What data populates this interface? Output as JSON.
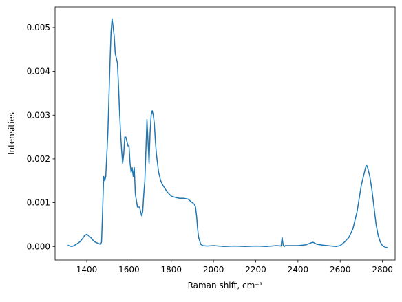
{
  "chart_data": {
    "type": "line",
    "xlabel": "Raman shift, cm⁻¹",
    "ylabel": "Intensities",
    "x": [
      1310,
      1320,
      1330,
      1340,
      1350,
      1360,
      1370,
      1380,
      1390,
      1400,
      1410,
      1420,
      1430,
      1440,
      1450,
      1460,
      1465,
      1470,
      1475,
      1480,
      1485,
      1490,
      1495,
      1500,
      1505,
      1510,
      1515,
      1520,
      1525,
      1530,
      1535,
      1540,
      1545,
      1550,
      1555,
      1560,
      1565,
      1570,
      1575,
      1580,
      1585,
      1590,
      1595,
      1600,
      1605,
      1610,
      1615,
      1620,
      1625,
      1630,
      1640,
      1650,
      1660,
      1665,
      1670,
      1675,
      1680,
      1685,
      1690,
      1695,
      1700,
      1705,
      1710,
      1715,
      1720,
      1725,
      1730,
      1740,
      1750,
      1760,
      1780,
      1800,
      1820,
      1840,
      1860,
      1880,
      1900,
      1910,
      1915,
      1920,
      1925,
      1930,
      1940,
      1950,
      1970,
      2000,
      2050,
      2100,
      2150,
      2200,
      2250,
      2300,
      2320,
      2325,
      2330,
      2335,
      2340,
      2400,
      2440,
      2470,
      2490,
      2520,
      2560,
      2580,
      2600,
      2620,
      2640,
      2660,
      2680,
      2700,
      2710,
      2720,
      2725,
      2730,
      2740,
      2750,
      2760,
      2770,
      2780,
      2790,
      2800,
      2815,
      2825
    ],
    "series": [
      {
        "name": "Intensities",
        "color": "#1f77b4",
        "values": [
          3e-05,
          1e-05,
          0.0,
          2e-05,
          5e-05,
          8e-05,
          0.00012,
          0.00018,
          0.00025,
          0.00028,
          0.00024,
          0.0002,
          0.00014,
          0.0001,
          8e-05,
          6e-05,
          5e-05,
          0.0001,
          0.0008,
          0.0016,
          0.0015,
          0.0016,
          0.0021,
          0.0026,
          0.0034,
          0.0042,
          0.0049,
          0.0052,
          0.005,
          0.0048,
          0.0044,
          0.0043,
          0.0042,
          0.0037,
          0.0031,
          0.0026,
          0.0022,
          0.0019,
          0.0021,
          0.0025,
          0.0025,
          0.0024,
          0.0023,
          0.0023,
          0.0019,
          0.0017,
          0.0018,
          0.0016,
          0.0018,
          0.0012,
          0.0009,
          0.0009,
          0.0007,
          0.0008,
          0.0012,
          0.0015,
          0.0022,
          0.0029,
          0.0024,
          0.0019,
          0.0026,
          0.003,
          0.0031,
          0.003,
          0.0028,
          0.0024,
          0.0021,
          0.0017,
          0.0015,
          0.0014,
          0.00125,
          0.00115,
          0.00112,
          0.0011,
          0.0011,
          0.00108,
          0.001,
          0.00096,
          0.0009,
          0.0007,
          0.0004,
          0.0002,
          5e-05,
          2e-05,
          1e-05,
          2e-05,
          0.0,
          1e-05,
          0.0,
          1e-05,
          0.0,
          2e-05,
          1e-05,
          0.0002,
          3e-05,
          0.0,
          2e-05,
          2e-05,
          4e-05,
          0.0001,
          5e-05,
          3e-05,
          1e-05,
          0.0,
          2e-05,
          0.0001,
          0.0002,
          0.0004,
          0.0008,
          0.0014,
          0.0016,
          0.0018,
          0.00185,
          0.0018,
          0.0016,
          0.0013,
          0.0009,
          0.0005,
          0.00025,
          0.0001,
          2e-05,
          -2e-05,
          -3e-05
        ]
      }
    ],
    "xlim": [
      1250,
      2860
    ],
    "ylim": [
      -0.00031,
      0.00547
    ],
    "xticks": [
      1400,
      1600,
      1800,
      2000,
      2200,
      2400,
      2600,
      2800
    ],
    "yticks": [
      {
        "value": 0,
        "label": "0.000"
      },
      {
        "value": 0.001,
        "label": "0.001"
      },
      {
        "value": 0.002,
        "label": "0.002"
      },
      {
        "value": 0.003,
        "label": "0.003"
      },
      {
        "value": 0.004,
        "label": "0.004"
      },
      {
        "value": 0.005,
        "label": "0.005"
      }
    ],
    "grid": false
  }
}
